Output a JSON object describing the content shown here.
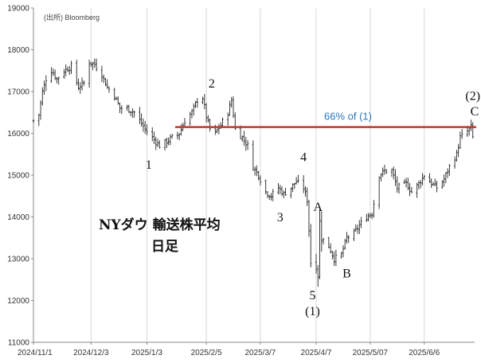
{
  "source": "(出所) Bloomberg",
  "chart_data": {
    "type": "ohlc",
    "title": [
      "NYダウ 輸送株平均",
      "日足"
    ],
    "xlabel": "",
    "ylabel": "",
    "ylim": [
      11000,
      19000
    ],
    "y_ticks": [
      11000,
      12000,
      13000,
      14000,
      15000,
      16000,
      17000,
      18000,
      19000
    ],
    "x_range": [
      "2024-11-01",
      "2025-07-04"
    ],
    "x_ticks": [
      "2024-11-01",
      "2024-12-03",
      "2025-01-03",
      "2025-02-05",
      "2025-03-07",
      "2025-04-07",
      "2025-05-07",
      "2025-06-06"
    ],
    "x_tick_labels": [
      "2024/11/1",
      "2024/12/3",
      "2025/1/3",
      "2025/2/5",
      "2025/3/7",
      "2025/4/7",
      "2025/5/07",
      "2025/6/6"
    ],
    "grid": "vertical",
    "price_path": [
      [
        "2024-11-01",
        16300
      ],
      [
        "2024-11-04",
        16450
      ],
      [
        "2024-11-06",
        17000
      ],
      [
        "2024-11-08",
        17300
      ],
      [
        "2024-11-11",
        17500
      ],
      [
        "2024-11-14",
        17300
      ],
      [
        "2024-11-18",
        17500
      ],
      [
        "2024-11-22",
        17600
      ],
      [
        "2024-11-26",
        17100
      ],
      [
        "2024-11-29",
        17200
      ],
      [
        "2024-12-02",
        17700
      ],
      [
        "2024-12-05",
        17650
      ],
      [
        "2024-12-09",
        17400
      ],
      [
        "2024-12-12",
        17100
      ],
      [
        "2024-12-16",
        16900
      ],
      [
        "2024-12-19",
        16600
      ],
      [
        "2024-12-23",
        16600
      ],
      [
        "2024-12-27",
        16500
      ],
      [
        "2024-12-30",
        16300
      ],
      [
        "2025-01-02",
        16100
      ],
      [
        "2025-01-06",
        15900
      ],
      [
        "2025-01-10",
        15700
      ],
      [
        "2025-01-14",
        15800
      ],
      [
        "2025-01-17",
        15900
      ],
      [
        "2025-01-21",
        16000
      ],
      [
        "2025-01-24",
        16300
      ],
      [
        "2025-01-28",
        16500
      ],
      [
        "2025-01-31",
        16800
      ],
      [
        "2025-02-03",
        16850
      ],
      [
        "2025-02-05",
        16400
      ],
      [
        "2025-02-07",
        16100
      ],
      [
        "2025-02-10",
        16000
      ],
      [
        "2025-02-13",
        16200
      ],
      [
        "2025-02-17",
        16500
      ],
      [
        "2025-02-19",
        16800
      ],
      [
        "2025-02-21",
        16100
      ],
      [
        "2025-02-25",
        15900
      ],
      [
        "2025-02-28",
        15700
      ],
      [
        "2025-03-03",
        15200
      ],
      [
        "2025-03-06",
        15000
      ],
      [
        "2025-03-10",
        14600
      ],
      [
        "2025-03-13",
        14500
      ],
      [
        "2025-03-17",
        14700
      ],
      [
        "2025-03-20",
        14550
      ],
      [
        "2025-03-24",
        14700
      ],
      [
        "2025-03-27",
        14850
      ],
      [
        "2025-03-31",
        14700
      ],
      [
        "2025-04-02",
        14400
      ],
      [
        "2025-04-03",
        13700
      ],
      [
        "2025-04-04",
        12900
      ],
      [
        "2025-04-07",
        12800
      ],
      [
        "2025-04-08",
        12600
      ],
      [
        "2025-04-09",
        13900
      ],
      [
        "2025-04-10",
        13500
      ],
      [
        "2025-04-14",
        13300
      ],
      [
        "2025-04-17",
        13000
      ],
      [
        "2025-04-21",
        13100
      ],
      [
        "2025-04-24",
        13500
      ],
      [
        "2025-04-28",
        13600
      ],
      [
        "2025-05-01",
        13800
      ],
      [
        "2025-05-05",
        14000
      ],
      [
        "2025-05-08",
        14100
      ],
      [
        "2025-05-12",
        15000
      ],
      [
        "2025-05-15",
        15100
      ],
      [
        "2025-05-19",
        15100
      ],
      [
        "2025-05-22",
        14700
      ],
      [
        "2025-05-27",
        14800
      ],
      [
        "2025-05-30",
        14600
      ],
      [
        "2025-06-03",
        14800
      ],
      [
        "2025-06-06",
        15000
      ],
      [
        "2025-06-10",
        14800
      ],
      [
        "2025-06-13",
        14700
      ],
      [
        "2025-06-17",
        14900
      ],
      [
        "2025-06-20",
        15200
      ],
      [
        "2025-06-24",
        15500
      ],
      [
        "2025-06-26",
        15900
      ],
      [
        "2025-06-30",
        16050
      ],
      [
        "2025-07-02",
        16150
      ],
      [
        "2025-07-03",
        15900
      ]
    ],
    "resistance": {
      "value": 16150,
      "label": "66% of (1)",
      "color": "#c0392b",
      "label_color": "#2e75b6"
    },
    "annotations": [
      {
        "text": "1",
        "x": "2025-01-04",
        "y": 15150
      },
      {
        "text": "2",
        "x": "2025-02-08",
        "y": 17100
      },
      {
        "text": "3",
        "x": "2025-03-18",
        "y": 13900
      },
      {
        "text": "4",
        "x": "2025-03-31",
        "y": 15330
      },
      {
        "text": "A",
        "x": "2025-04-08",
        "y": 14140
      },
      {
        "text": "B",
        "x": "2025-04-24",
        "y": 12550
      },
      {
        "text": "5",
        "x": "2025-04-05",
        "y": 12030
      },
      {
        "text": "(1)",
        "x": "2025-04-05",
        "y": 11650
      },
      {
        "text": "(2)",
        "x": "2025-07-03",
        "y": 16800
      },
      {
        "text": "C",
        "x": "2025-07-04",
        "y": 16430
      }
    ],
    "colors": {
      "bars": "#222222",
      "grid": "#d9d9d9",
      "axis": "#888888"
    }
  }
}
